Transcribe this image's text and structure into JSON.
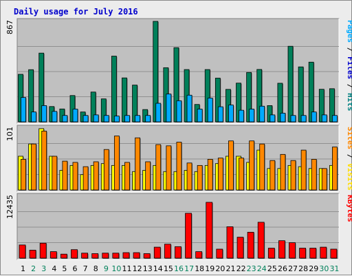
{
  "chart_data": {
    "type": "bar",
    "title": "Daily usage for July 2016",
    "categories": [
      "1",
      "2",
      "3",
      "4",
      "5",
      "6",
      "7",
      "8",
      "9",
      "10",
      "11",
      "12",
      "13",
      "14",
      "15",
      "16",
      "17",
      "18",
      "19",
      "20",
      "21",
      "22",
      "23",
      "24",
      "25",
      "26",
      "27",
      "28",
      "29",
      "30",
      "31"
    ],
    "weekend_days": [
      "2",
      "3",
      "9",
      "10",
      "16",
      "17",
      "23",
      "24",
      "30",
      "31"
    ],
    "panels": [
      {
        "id": "hits",
        "max_label": "867",
        "ymax": 867,
        "side_labels": [
          {
            "text": "Pages",
            "color": "#00aaff"
          },
          {
            "text": " / ",
            "color": "#000000"
          },
          {
            "text": "Files",
            "color": "#0000cc"
          },
          {
            "text": " / ",
            "color": "#000000"
          },
          {
            "text": "Hits",
            "color": "#008080"
          }
        ],
        "series": [
          {
            "name": "Hits",
            "color": "#00805a",
            "values": [
              410,
              450,
              593,
              132,
              111,
              227,
              85,
              257,
              198,
              567,
              379,
              317,
              106,
              867,
              467,
              640,
              451,
              150,
              451,
              377,
              280,
              334,
              426,
              452,
              140,
              333,
              652,
              474,
              515,
              281,
              286
            ]
          },
          {
            "name": "Files",
            "color": "#0000cc",
            "values": [
              210,
              85,
              140,
              90,
              55,
              110,
              55,
              60,
              55,
              50,
              55,
              55,
              55,
              160,
              240,
              182,
              230,
              110,
              205,
              130,
              145,
              100,
              110,
              135,
              60,
              75,
              55,
              55,
              85,
              60,
              55
            ]
          },
          {
            "name": "Pages",
            "color": "#00aaff",
            "values": [
              210,
              85,
              140,
              90,
              55,
              110,
              55,
              60,
              55,
              50,
              55,
              55,
              55,
              160,
              240,
              182,
              230,
              110,
              205,
              130,
              145,
              100,
              110,
              135,
              60,
              75,
              55,
              55,
              85,
              60,
              55
            ]
          }
        ]
      },
      {
        "id": "visits",
        "max_label": "101",
        "ymax": 101,
        "side_labels": [
          {
            "text": "Sites",
            "color": "#ff8800"
          },
          {
            "text": " / ",
            "color": "#000000"
          },
          {
            "text": "Visits",
            "color": "#ffdd00"
          }
        ],
        "series": [
          {
            "name": "Visits",
            "color": "#ffff00",
            "values": [
              55,
              75,
              100,
              55,
              32,
              40,
              25,
              40,
              43,
              40,
              40,
              30,
              32,
              40,
              30,
              30,
              32,
              30,
              40,
              43,
              55,
              55,
              45,
              65,
              35,
              35,
              40,
              38,
              35,
              35,
              40
            ]
          },
          {
            "name": "Sites",
            "color": "#ff8800",
            "values": [
              50,
              75,
              96,
              55,
              47,
              45,
              38,
              46,
              66,
              88,
              45,
              85,
              46,
              74,
              72,
              78,
              44,
              40,
              50,
              52,
              80,
              52,
              80,
              75,
              48,
              58,
              48,
              65,
              50,
              35,
              70
            ]
          }
        ]
      },
      {
        "id": "kbytes",
        "max_label": "12435",
        "ymax": 12435,
        "side_labels": [
          {
            "text": "KBytes",
            "color": "#ff0000"
          }
        ],
        "series": [
          {
            "name": "KBytes",
            "color": "#ff0000",
            "values": [
              2640,
              1600,
              3000,
              1300,
              800,
              1700,
              1000,
              900,
              1000,
              1000,
              1100,
              1100,
              900,
              2200,
              2800,
              2300,
              9000,
              1300,
              11200,
              1800,
              6300,
              4200,
              5200,
              7200,
              2000,
              3500,
              3100,
              2000,
              2000,
              2200,
              1800
            ]
          }
        ]
      }
    ]
  }
}
